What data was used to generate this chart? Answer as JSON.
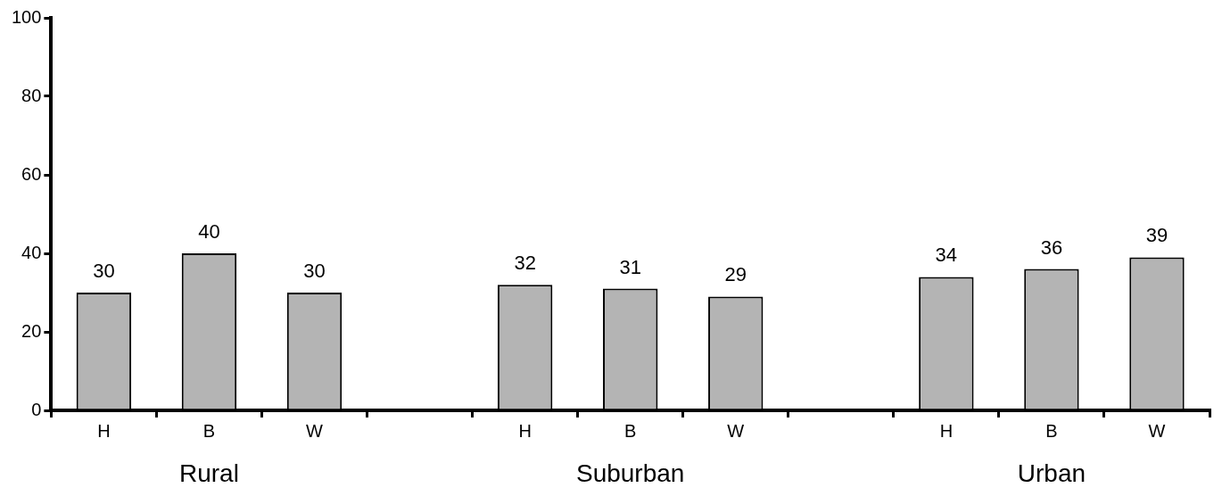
{
  "chart_data": {
    "type": "bar",
    "categories": [
      "H",
      "B",
      "W",
      null,
      "H",
      "B",
      "W",
      null,
      "H",
      "B",
      "W"
    ],
    "values": [
      30,
      40,
      30,
      null,
      32,
      31,
      29,
      null,
      34,
      36,
      39
    ],
    "color": "#b4b4b4",
    "ylim": [
      0,
      100
    ],
    "yticks": [
      0,
      20,
      40,
      60,
      80,
      100
    ],
    "grid": false,
    "legend": false,
    "data_labels": true,
    "annotations": [
      "Rural",
      "Suburban",
      "Urban"
    ]
  }
}
